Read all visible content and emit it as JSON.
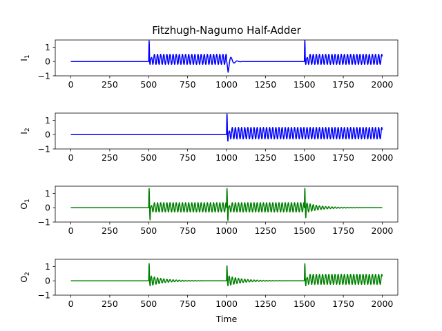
{
  "chart_data": {
    "type": "line",
    "title": "Fitzhugh-Nagumo Half-Adder",
    "xlabel": "Time",
    "x_ticks": [
      0,
      250,
      500,
      750,
      1000,
      1250,
      1500,
      1750,
      2000
    ],
    "xlim": [
      -100,
      2100
    ],
    "y_ticks": [
      -1,
      0,
      1
    ],
    "grid": false,
    "panels": [
      {
        "ylabel": "I",
        "ylabel_sub": "1",
        "ylim": [
          -1,
          1.5
        ],
        "color": "#0000ff",
        "spike_times": [
          500,
          1500
        ],
        "segments": [
          {
            "start": 0,
            "end": 500,
            "kind": "rest",
            "level": 0.0
          },
          {
            "start": 500,
            "end": 1000,
            "kind": "oscillation",
            "spike_peak": 1.45,
            "spike_trough": -0.2,
            "peak": 0.5,
            "trough": -0.2,
            "period": 20
          },
          {
            "start": 1000,
            "end": 1500,
            "kind": "inhibit",
            "dip": -0.75,
            "level": 0.0
          },
          {
            "start": 1500,
            "end": 2000,
            "kind": "oscillation",
            "spike_peak": 1.5,
            "spike_trough": -0.2,
            "peak": 0.5,
            "trough": -0.2,
            "period": 20
          }
        ]
      },
      {
        "ylabel": "I",
        "ylabel_sub": "2",
        "ylim": [
          -1,
          1.5
        ],
        "color": "#0000ff",
        "spike_times": [
          1000
        ],
        "segments": [
          {
            "start": 0,
            "end": 1000,
            "kind": "rest",
            "level": 0.0
          },
          {
            "start": 1000,
            "end": 2000,
            "kind": "oscillation",
            "spike_peak": 1.45,
            "spike_trough": -0.45,
            "peak": 0.5,
            "trough": -0.3,
            "period": 20
          }
        ]
      },
      {
        "ylabel": "O",
        "ylabel_sub": "1",
        "ylim": [
          -1,
          1.5
        ],
        "color": "#008000",
        "spike_times": [
          500,
          1000,
          1500
        ],
        "segments": [
          {
            "start": 0,
            "end": 500,
            "kind": "rest",
            "level": 0.0
          },
          {
            "start": 500,
            "end": 1000,
            "kind": "oscillation",
            "spike_peak": 1.35,
            "spike_trough": -0.85,
            "peak": 0.35,
            "trough": -0.3,
            "period": 20
          },
          {
            "start": 1000,
            "end": 1500,
            "kind": "oscillation",
            "spike_peak": 1.35,
            "spike_trough": -0.9,
            "peak": 0.35,
            "trough": -0.3,
            "period": 20
          },
          {
            "start": 1500,
            "end": 2000,
            "kind": "decay",
            "spike_peak": 1.35,
            "spike_trough": -0.7,
            "level": 0.0
          }
        ]
      },
      {
        "ylabel": "O",
        "ylabel_sub": "2",
        "ylim": [
          -1,
          1.5
        ],
        "color": "#008000",
        "spike_times": [
          500,
          1000,
          1500
        ],
        "segments": [
          {
            "start": 0,
            "end": 500,
            "kind": "rest",
            "level": 0.0
          },
          {
            "start": 500,
            "end": 1000,
            "kind": "decay",
            "spike_peak": 1.2,
            "spike_trough": -0.35,
            "level": 0.0
          },
          {
            "start": 1000,
            "end": 1500,
            "kind": "decay",
            "spike_peak": 1.05,
            "spike_trough": -0.35,
            "level": 0.0
          },
          {
            "start": 1500,
            "end": 2000,
            "kind": "oscillation",
            "spike_peak": 1.2,
            "spike_trough": -0.35,
            "peak": 0.45,
            "trough": -0.25,
            "period": 20
          }
        ]
      }
    ]
  }
}
